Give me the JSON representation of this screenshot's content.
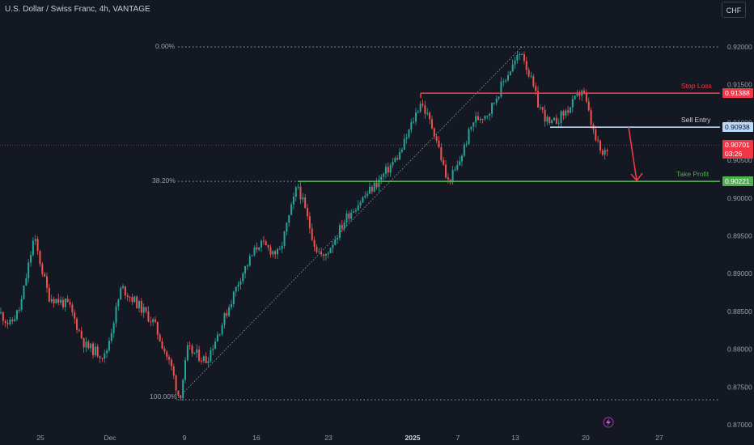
{
  "header": {
    "title": "U.S. Dollar / Swiss Franc, 4h, VANTAGE",
    "currency_button": "CHF"
  },
  "annotations": {
    "stop_loss": "Stop Loss",
    "sell_entry": "Sell Entry",
    "take_profit": "Take Profit",
    "fib_0": "0.00%",
    "fib_382": "38.20%",
    "fib_100": "100.00%"
  },
  "price_tags": {
    "stop_loss": "0.91388",
    "sell_entry": "0.90938",
    "current_price": "0.90701",
    "countdown": "03:26",
    "take_profit": "0.90221"
  },
  "colors": {
    "background": "#141823",
    "up": "#26a69a",
    "down": "#ef5350",
    "stop_loss": "#f23645",
    "sell_entry": "#bbd9fb",
    "take_profit": "#4caf50"
  },
  "chart_data": {
    "type": "candlestick",
    "timeframe": "4h",
    "y_ticks": [
      "0.92000",
      "0.91500",
      "0.91000",
      "0.90500",
      "0.90000",
      "0.89500",
      "0.89000",
      "0.88500",
      "0.88000",
      "0.87500",
      "0.87000"
    ],
    "x_ticks": [
      "25",
      "Dec",
      "9",
      "16",
      "23",
      "2025",
      "7",
      "13",
      "20",
      "27"
    ],
    "ylim": [
      0.8695,
      0.9225
    ],
    "levels": {
      "fib_0": 0.92,
      "fib_382": 0.90221,
      "fib_100": 0.8733,
      "stop_loss": 0.91388,
      "sell_entry": 0.90938,
      "take_profit": 0.90221,
      "current": 0.90701
    },
    "path": [
      [
        0,
        0.8848
      ],
      [
        12,
        0.8832
      ],
      [
        25,
        0.8855
      ],
      [
        42,
        0.8948
      ],
      [
        60,
        0.887
      ],
      [
        85,
        0.8858
      ],
      [
        105,
        0.8805
      ],
      [
        130,
        0.879
      ],
      [
        150,
        0.8882
      ],
      [
        168,
        0.8862
      ],
      [
        190,
        0.8835
      ],
      [
        212,
        0.8775
      ],
      [
        222,
        0.8733
      ],
      [
        232,
        0.88
      ],
      [
        255,
        0.8785
      ],
      [
        275,
        0.8835
      ],
      [
        298,
        0.8898
      ],
      [
        320,
        0.894
      ],
      [
        345,
        0.8925
      ],
      [
        368,
        0.9018
      ],
      [
        390,
        0.8935
      ],
      [
        400,
        0.892
      ],
      [
        430,
        0.8978
      ],
      [
        470,
        0.9025
      ],
      [
        495,
        0.906
      ],
      [
        520,
        0.9128
      ],
      [
        538,
        0.9085
      ],
      [
        553,
        0.902
      ],
      [
        565,
        0.904
      ],
      [
        585,
        0.9102
      ],
      [
        605,
        0.9115
      ],
      [
        625,
        0.916
      ],
      [
        645,
        0.9195
      ],
      [
        665,
        0.9125
      ],
      [
        680,
        0.9095
      ],
      [
        705,
        0.912
      ],
      [
        720,
        0.9145
      ],
      [
        735,
        0.908
      ],
      [
        745,
        0.9055
      ],
      [
        753,
        0.907
      ]
    ]
  }
}
